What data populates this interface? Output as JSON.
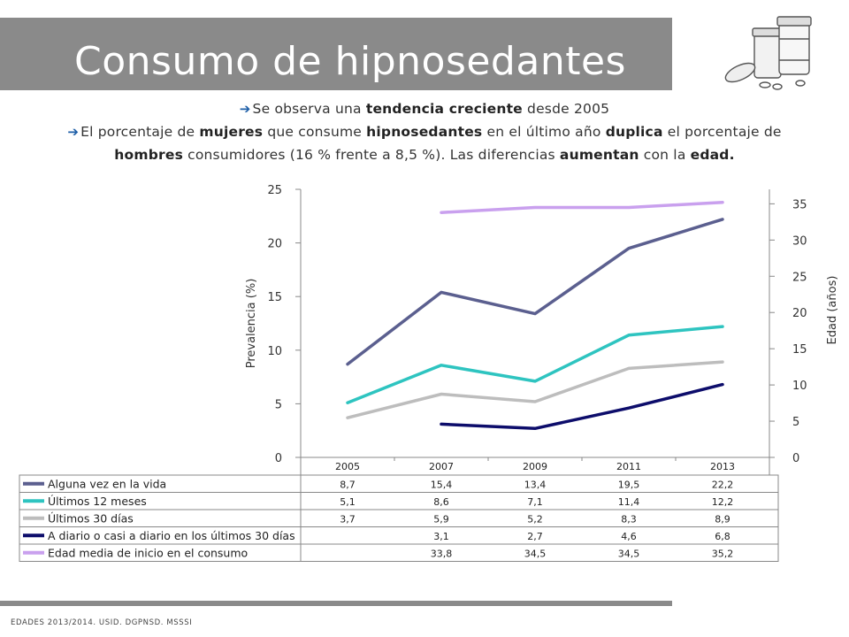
{
  "slide": {
    "title": "Consumo de hipnosedantes",
    "bullets": [
      [
        {
          "t": "Se observa una ",
          "b": false
        },
        {
          "t": "tendencia creciente",
          "b": true
        },
        {
          "t": " desde 2005",
          "b": false
        }
      ],
      [
        {
          "t": "El porcentaje de ",
          "b": false
        },
        {
          "t": "mujeres",
          "b": true
        },
        {
          "t": " que consume ",
          "b": false
        },
        {
          "t": "hipnosedantes",
          "b": true
        },
        {
          "t": " en el último año ",
          "b": false
        },
        {
          "t": "duplica",
          "b": true
        },
        {
          "t": " el porcentaje de",
          "b": false
        }
      ],
      [
        {
          "t": "hombres",
          "b": true
        },
        {
          "t": " consumidores (16 % frente a 8,5 %). Las diferencias ",
          "b": false
        },
        {
          "t": "aumentan",
          "b": true
        },
        {
          "t": " con la ",
          "b": false
        },
        {
          "t": "edad.",
          "b": true
        }
      ]
    ],
    "source": "EDADES 2013/2014. USID. DGPNSD. MSSSI",
    "accent_color": "#8a8a8a",
    "arrow_color": "#1f5fa8"
  },
  "chart_data": {
    "type": "line",
    "categories": [
      "2005",
      "2007",
      "2009",
      "2011",
      "2013"
    ],
    "ylabel": "Prevalencia (%)",
    "y2label": "Edad (años)",
    "ylim": [
      0,
      25
    ],
    "yticks": [
      0,
      5,
      10,
      15,
      20,
      25
    ],
    "y2lim": [
      0,
      37
    ],
    "y2ticks": [
      0,
      5,
      10,
      15,
      20,
      25,
      30,
      35
    ],
    "grid": false,
    "legend": "data-table-below",
    "series": [
      {
        "name": "Alguna vez en la vida",
        "axis": "left",
        "color": "#5b5f8f",
        "values": [
          8.7,
          15.4,
          13.4,
          19.5,
          22.2
        ],
        "labels": [
          "8,7",
          "15,4",
          "13,4",
          "19,5",
          "22,2"
        ]
      },
      {
        "name": "Últimos 12 meses",
        "axis": "left",
        "color": "#2ec4c0",
        "values": [
          5.1,
          8.6,
          7.1,
          11.4,
          12.2
        ],
        "labels": [
          "5,1",
          "8,6",
          "7,1",
          "11,4",
          "12,2"
        ]
      },
      {
        "name": "Últimos 30 días",
        "axis": "left",
        "color": "#bdbdbd",
        "values": [
          3.7,
          5.9,
          5.2,
          8.3,
          8.9
        ],
        "labels": [
          "3,7",
          "5,9",
          "5,2",
          "8,3",
          "8,9"
        ]
      },
      {
        "name": "A diario o casi a diario en los últimos 30 días",
        "axis": "left",
        "color": "#0d0d6b",
        "values": [
          null,
          3.1,
          2.7,
          4.6,
          6.8
        ],
        "labels": [
          "",
          "3,1",
          "2,7",
          "4,6",
          "6,8"
        ]
      },
      {
        "name": "Edad media de inicio en el consumo",
        "axis": "right",
        "color": "#c9a0ee",
        "values": [
          null,
          33.8,
          34.5,
          34.5,
          35.2
        ],
        "labels": [
          "",
          "33,8",
          "34,5",
          "34,5",
          "35,2"
        ]
      }
    ]
  }
}
